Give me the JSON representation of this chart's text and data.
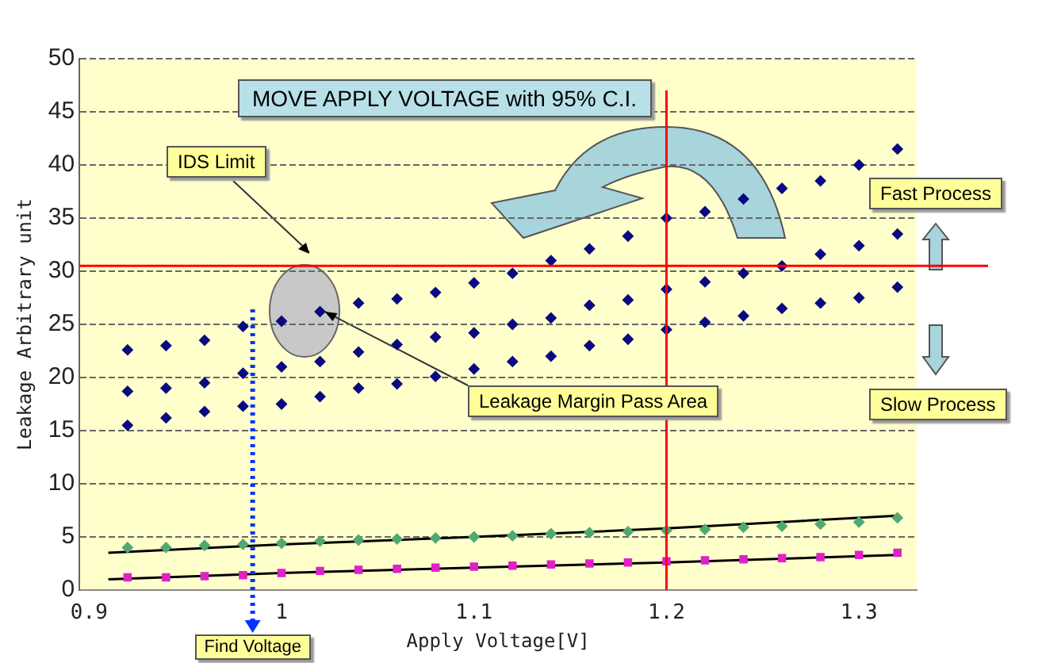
{
  "chart_data": {
    "type": "scatter",
    "xlabel": "Apply Voltage[V]",
    "ylabel": "Leakage Arbitrary unit",
    "xlim": [
      0.895,
      1.33
    ],
    "xticks": [
      {
        "value": 0.9,
        "label": "0.9"
      },
      1,
      1.1,
      1.2,
      1.3
    ],
    "ylim": [
      0,
      50
    ],
    "yticks": [
      0,
      5,
      10,
      15,
      20,
      25,
      30,
      35,
      40,
      45,
      50
    ],
    "grid": "y",
    "legend": false,
    "series": [
      {
        "type": "scatter",
        "marker": "diamond",
        "color": "#0a0a80",
        "x": [
          0.92,
          0.94,
          0.96,
          0.98,
          1.0,
          1.02,
          1.04,
          1.06,
          1.08,
          1.1,
          1.12,
          1.14,
          1.16,
          1.18,
          1.2,
          1.22,
          1.24,
          1.26,
          1.28,
          1.3,
          1.32
        ],
        "values": [
          22.6,
          23.0,
          23.5,
          24.8,
          25.3,
          26.2,
          27.0,
          27.4,
          28.0,
          28.9,
          29.8,
          31.0,
          32.1,
          33.3,
          35.0,
          35.6,
          36.8,
          37.8,
          38.5,
          40.0,
          41.5
        ]
      },
      {
        "type": "scatter",
        "marker": "diamond",
        "color": "#0a0a80",
        "x": [
          0.92,
          0.94,
          0.96,
          0.98,
          1.0,
          1.02,
          1.04,
          1.06,
          1.08,
          1.1,
          1.12,
          1.14,
          1.16,
          1.18,
          1.2,
          1.22,
          1.24,
          1.26,
          1.28,
          1.3,
          1.32
        ],
        "values": [
          18.7,
          19.0,
          19.5,
          20.4,
          21.0,
          21.5,
          22.4,
          23.1,
          23.8,
          24.2,
          25.0,
          25.6,
          26.8,
          27.3,
          28.3,
          29.0,
          29.8,
          30.5,
          31.6,
          32.4,
          33.5
        ]
      },
      {
        "type": "scatter",
        "marker": "diamond",
        "color": "#0a0a80",
        "x": [
          0.92,
          0.94,
          0.96,
          0.98,
          1.0,
          1.02,
          1.04,
          1.06,
          1.08,
          1.1,
          1.12,
          1.14,
          1.16,
          1.18,
          1.2,
          1.22,
          1.24,
          1.26,
          1.28,
          1.3,
          1.32
        ],
        "values": [
          15.5,
          16.2,
          16.8,
          17.3,
          17.5,
          18.2,
          19.0,
          19.4,
          20.1,
          20.8,
          21.5,
          22.0,
          23.0,
          23.6,
          24.5,
          25.2,
          25.8,
          26.5,
          27.0,
          27.5,
          28.5
        ]
      },
      {
        "type": "scatter",
        "marker": "diamond",
        "color": "#52a872",
        "x": [
          0.92,
          0.94,
          0.96,
          0.98,
          1.0,
          1.02,
          1.04,
          1.06,
          1.08,
          1.1,
          1.12,
          1.14,
          1.16,
          1.18,
          1.2,
          1.22,
          1.24,
          1.26,
          1.28,
          1.3,
          1.32
        ],
        "values": [
          4.0,
          4.0,
          4.2,
          4.3,
          4.4,
          4.6,
          4.7,
          4.8,
          4.9,
          5.0,
          5.1,
          5.3,
          5.4,
          5.5,
          5.6,
          5.7,
          5.9,
          6.0,
          6.2,
          6.4,
          6.8
        ]
      },
      {
        "type": "scatter",
        "marker": "square",
        "color": "#e020c8",
        "x": [
          0.92,
          0.94,
          0.96,
          0.98,
          1.0,
          1.02,
          1.04,
          1.06,
          1.08,
          1.1,
          1.12,
          1.14,
          1.16,
          1.18,
          1.2,
          1.22,
          1.24,
          1.26,
          1.28,
          1.3,
          1.32
        ],
        "values": [
          1.2,
          1.2,
          1.3,
          1.4,
          1.6,
          1.8,
          1.9,
          2.0,
          2.1,
          2.2,
          2.3,
          2.4,
          2.5,
          2.6,
          2.7,
          2.8,
          2.9,
          3.0,
          3.1,
          3.3,
          3.5
        ]
      },
      {
        "type": "line",
        "marker": "none",
        "color": "#000000",
        "x": [
          0.91,
          1.0,
          1.1,
          1.2,
          1.32
        ],
        "values": [
          3.5,
          4.3,
          5.0,
          5.8,
          7.0
        ]
      },
      {
        "type": "line",
        "marker": "none",
        "color": "#000000",
        "x": [
          0.91,
          1.0,
          1.1,
          1.2,
          1.32
        ],
        "values": [
          1.0,
          1.6,
          2.1,
          2.6,
          3.3
        ]
      }
    ],
    "ref_lines": [
      {
        "axis": "y",
        "value": 30.5,
        "label": "IDS Limit",
        "color": "#ff0000",
        "line_style": "solid"
      },
      {
        "axis": "x",
        "value": 1.2,
        "color": "#ff0000",
        "line_style": "solid"
      },
      {
        "axis": "x",
        "value": 0.985,
        "label": "Find Voltage",
        "color": "#0033ff",
        "line_style": "dotted"
      }
    ],
    "annotations": [
      "MOVE APPLY VOLTAGE with 95% C.I.",
      "Fast Process",
      "Slow Process",
      {
        "text": "Leakage Margin Pass Area",
        "x": 1.02,
        "y": 26.2
      }
    ]
  }
}
